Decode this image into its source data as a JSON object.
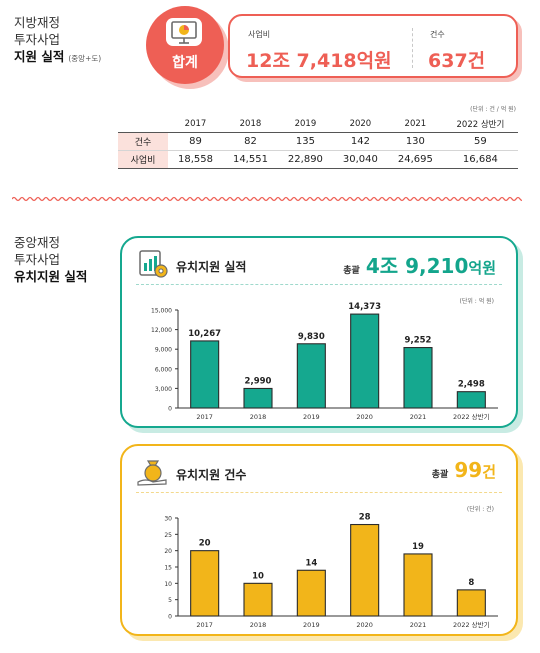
{
  "section1": {
    "title_lines": [
      "지방재정",
      "투자사업"
    ],
    "title_bold": "지원 실적",
    "title_note": "(중앙+도)",
    "total_label": "합계",
    "budget_label": "사업비",
    "budget_value": "12조 7,418억원",
    "count_label": "건수",
    "count_value": "637건",
    "unit": "(단위 : 건 / 억 원)",
    "table": {
      "columns": [
        "2017",
        "2018",
        "2019",
        "2020",
        "2021",
        "2022 상반기"
      ],
      "rows": [
        {
          "label": "건수",
          "values": [
            "89",
            "82",
            "135",
            "142",
            "130",
            "59"
          ]
        },
        {
          "label": "사업비",
          "values": [
            "18,558",
            "14,551",
            "22,890",
            "30,040",
            "24,695",
            "16,684"
          ]
        }
      ]
    }
  },
  "section2": {
    "title_lines": [
      "중앙재정",
      "투자사업"
    ],
    "title_bold": "유치지원 실적"
  },
  "colors": {
    "coral": "#ee5f55",
    "teal": "#15a88f",
    "yellow": "#f2b51a"
  },
  "icons": {
    "total": "presentation-chart-icon",
    "performance": "gear-chart-icon",
    "count": "money-bag-hand-icon"
  },
  "chart_data": [
    {
      "type": "bar",
      "title": "유치지원 실적",
      "total_label": "총괄",
      "total_value": "4조 9,210",
      "total_unit": "억원",
      "unit": "(단위 : 억 원)",
      "categories": [
        "2017",
        "2018",
        "2019",
        "2020",
        "2021",
        "2022 상반기"
      ],
      "values": [
        10267,
        2990,
        9830,
        14373,
        9252,
        2498
      ],
      "value_labels": [
        "10,267",
        "2,990",
        "9,830",
        "14,373",
        "9,252",
        "2,498"
      ],
      "ylim": [
        0,
        15000
      ],
      "yticks": [
        0,
        3000,
        6000,
        9000,
        12000,
        15000
      ],
      "ytick_labels": [
        "0",
        "3,000",
        "6,000",
        "9,000",
        "12,000",
        "15,000"
      ],
      "color": "#15a88f"
    },
    {
      "type": "bar",
      "title": "유치지원 건수",
      "total_label": "총괄",
      "total_value": "99",
      "total_unit": "건",
      "unit": "(단위 : 건)",
      "categories": [
        "2017",
        "2018",
        "2019",
        "2020",
        "2021",
        "2022 상반기"
      ],
      "values": [
        20,
        10,
        14,
        28,
        19,
        8
      ],
      "value_labels": [
        "20",
        "10",
        "14",
        "28",
        "19",
        "8"
      ],
      "ylim": [
        0,
        30
      ],
      "yticks": [
        0,
        5,
        10,
        15,
        20,
        25,
        30
      ],
      "ytick_labels": [
        "0",
        "5",
        "10",
        "15",
        "20",
        "25",
        "30"
      ],
      "color": "#f2b51a"
    }
  ]
}
